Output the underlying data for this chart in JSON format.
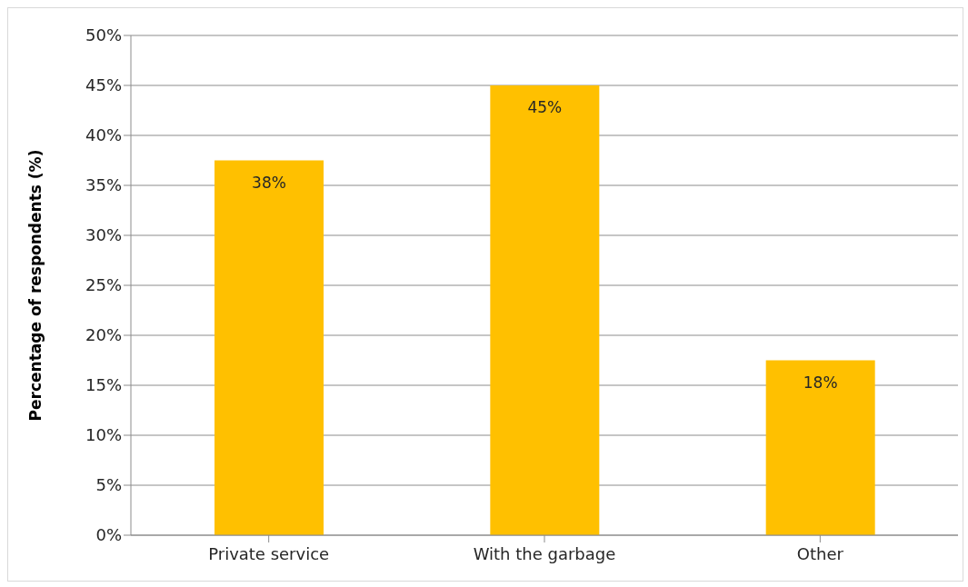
{
  "chart_data": {
    "type": "bar",
    "ylabel": "Percentage of respondents (%)",
    "categories": [
      "Private service",
      "With the garbage",
      "Other"
    ],
    "values": [
      37.5,
      45,
      17.5
    ],
    "color": "#ffc000",
    "value_labels": [
      "38%",
      "45%",
      "18%"
    ],
    "ylim": [
      0,
      50
    ],
    "yticks": [
      {
        "value": 0,
        "label": "0%"
      },
      {
        "value": 5,
        "label": "5%"
      },
      {
        "value": 10,
        "label": "10%"
      },
      {
        "value": 15,
        "label": "15%"
      },
      {
        "value": 20,
        "label": "20%"
      },
      {
        "value": 25,
        "label": "25%"
      },
      {
        "value": 30,
        "label": "30%"
      },
      {
        "value": 35,
        "label": "35%"
      },
      {
        "value": 40,
        "label": "40%"
      },
      {
        "value": 45,
        "label": "45%"
      },
      {
        "value": 50,
        "label": "50%"
      }
    ],
    "grid": "y"
  }
}
